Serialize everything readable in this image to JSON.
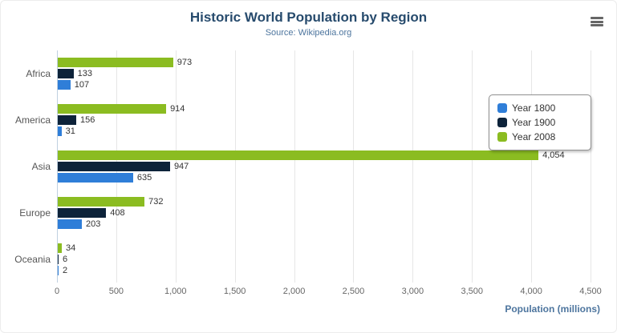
{
  "title": "Historic World Population by Region",
  "subtitle": "Source: Wikipedia.org",
  "chart_data": {
    "type": "bar",
    "orientation": "horizontal",
    "title": "Historic World Population by Region",
    "subtitle": "Source: Wikipedia.org",
    "categories": [
      "Africa",
      "America",
      "Asia",
      "Europe",
      "Oceania"
    ],
    "series": [
      {
        "name": "Year 1800",
        "color": "#2f7ed8",
        "values": [
          107,
          31,
          635,
          203,
          2
        ]
      },
      {
        "name": "Year 1900",
        "color": "#0d233a",
        "values": [
          133,
          156,
          947,
          408,
          6
        ]
      },
      {
        "name": "Year 2008",
        "color": "#8bbc21",
        "values": [
          973,
          914,
          4054,
          732,
          34
        ]
      }
    ],
    "series_display_order_top_to_bottom": [
      "Year 2008",
      "Year 1900",
      "Year 1800"
    ],
    "xlabel": "Population (millions)",
    "xlim": [
      0,
      4500
    ],
    "xticks": [
      0,
      500,
      1000,
      1500,
      2000,
      2500,
      3000,
      3500,
      4000,
      4500
    ],
    "grid": true,
    "value_labels": true,
    "legend_position": "right"
  },
  "legend": {
    "items": [
      {
        "label": "Year 1800",
        "color": "#2f7ed8"
      },
      {
        "label": "Year 1900",
        "color": "#0d233a"
      },
      {
        "label": "Year 2008",
        "color": "#8bbc21"
      }
    ]
  },
  "menu": {
    "icon": "hamburger-icon"
  },
  "colors": {
    "title": "#274b6d",
    "subtitle": "#4d759e",
    "axis_title": "#4d759e",
    "tick_label": "#666666",
    "gridline": "#e6e6e6"
  }
}
